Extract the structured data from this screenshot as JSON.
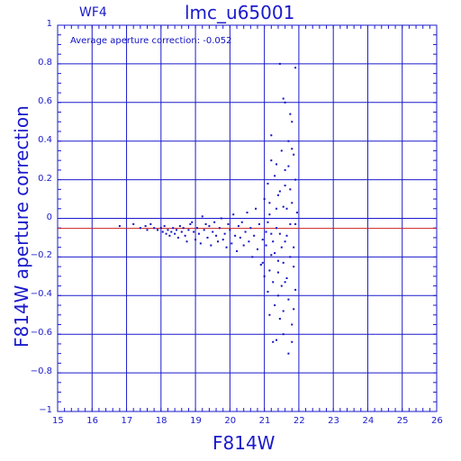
{
  "chart_data": {
    "type": "scatter",
    "corner_label": "WF4",
    "title": "lmc_u65001",
    "xlabel": "F814W",
    "ylabel": "F814W aperture correction",
    "annotation": "Average aperture correction: -0.052",
    "xlim": [
      15,
      26
    ],
    "ylim": [
      -1,
      1
    ],
    "xticks": [
      15,
      16,
      17,
      18,
      19,
      20,
      21,
      22,
      23,
      24,
      25,
      26
    ],
    "xtick_labels": [
      "15",
      "16",
      "17",
      "18",
      "19",
      "20",
      "21",
      "22",
      "23",
      "24",
      "25",
      "26"
    ],
    "yticks": [
      -1,
      -0.8,
      -0.6,
      -0.4,
      -0.2,
      0,
      0.2,
      0.4,
      0.6,
      0.8,
      1
    ],
    "ytick_labels": [
      "−1",
      "−0.8",
      "−0.6",
      "−0.4",
      "−0.2",
      "0",
      "0.2",
      "0.4",
      "0.6",
      "0.8",
      "1"
    ],
    "grid": true,
    "reference_line": -0.052,
    "colors": {
      "axes": "#1a1acc",
      "points": "#1010c0",
      "reference_line": "#cc2222"
    },
    "points": [
      [
        16.8,
        -0.04
      ],
      [
        17.2,
        -0.03
      ],
      [
        17.4,
        -0.05
      ],
      [
        17.55,
        -0.04
      ],
      [
        17.6,
        -0.06
      ],
      [
        17.7,
        -0.03
      ],
      [
        17.8,
        -0.05
      ],
      [
        17.9,
        -0.06
      ],
      [
        18.0,
        -0.05
      ],
      [
        18.05,
        -0.07
      ],
      [
        18.1,
        -0.04
      ],
      [
        18.15,
        -0.08
      ],
      [
        18.2,
        -0.06
      ],
      [
        18.25,
        -0.09
      ],
      [
        18.3,
        -0.07
      ],
      [
        18.35,
        -0.05
      ],
      [
        18.4,
        -0.08
      ],
      [
        18.45,
        -0.06
      ],
      [
        18.5,
        -0.1
      ],
      [
        18.55,
        -0.04
      ],
      [
        18.6,
        -0.07
      ],
      [
        18.65,
        -0.05
      ],
      [
        18.7,
        -0.09
      ],
      [
        18.75,
        -0.12
      ],
      [
        18.8,
        -0.06
      ],
      [
        18.85,
        -0.03
      ],
      [
        18.9,
        -0.02
      ],
      [
        18.95,
        -0.07
      ],
      [
        19.0,
        -0.11
      ],
      [
        19.05,
        -0.05
      ],
      [
        19.1,
        -0.08
      ],
      [
        19.15,
        -0.13
      ],
      [
        19.2,
        0.01
      ],
      [
        19.25,
        -0.06
      ],
      [
        19.3,
        -0.03
      ],
      [
        19.35,
        -0.1
      ],
      [
        19.4,
        -0.04
      ],
      [
        19.45,
        -0.14
      ],
      [
        19.5,
        -0.07
      ],
      [
        19.55,
        -0.02
      ],
      [
        19.6,
        -0.09
      ],
      [
        19.65,
        -0.12
      ],
      [
        19.7,
        -0.05
      ],
      [
        19.75,
        0.0
      ],
      [
        19.8,
        -0.11
      ],
      [
        19.85,
        -0.08
      ],
      [
        19.9,
        -0.15
      ],
      [
        19.95,
        -0.03
      ],
      [
        20.0,
        -0.06
      ],
      [
        20.05,
        -0.13
      ],
      [
        20.1,
        0.02
      ],
      [
        20.15,
        -0.09
      ],
      [
        20.2,
        -0.17
      ],
      [
        20.25,
        -0.04
      ],
      [
        20.3,
        -0.1
      ],
      [
        20.35,
        -0.02
      ],
      [
        20.4,
        -0.14
      ],
      [
        20.45,
        -0.07
      ],
      [
        20.5,
        0.03
      ],
      [
        20.55,
        -0.12
      ],
      [
        20.6,
        -0.05
      ],
      [
        20.65,
        -0.2
      ],
      [
        20.7,
        -0.09
      ],
      [
        20.75,
        0.05
      ],
      [
        20.8,
        -0.16
      ],
      [
        20.85,
        -0.03
      ],
      [
        20.9,
        -0.24
      ],
      [
        20.95,
        -0.11
      ],
      [
        21.0,
        0.1
      ],
      [
        21.0,
        -0.3
      ],
      [
        21.05,
        -0.07
      ],
      [
        21.1,
        0.18
      ],
      [
        21.1,
        -0.38
      ],
      [
        21.15,
        0.02
      ],
      [
        21.2,
        -0.19
      ],
      [
        21.2,
        0.3
      ],
      [
        21.25,
        -0.12
      ],
      [
        21.3,
        -0.45
      ],
      [
        21.3,
        0.22
      ],
      [
        21.35,
        -0.05
      ],
      [
        21.4,
        -0.28
      ],
      [
        21.4,
        0.12
      ],
      [
        21.45,
        -0.52
      ],
      [
        21.5,
        0.35
      ],
      [
        21.5,
        -0.15
      ],
      [
        21.55,
        0.06
      ],
      [
        21.55,
        -0.6
      ],
      [
        21.6,
        -0.33
      ],
      [
        21.6,
        0.25
      ],
      [
        21.65,
        -0.09
      ],
      [
        21.7,
        0.4
      ],
      [
        21.7,
        -0.42
      ],
      [
        21.75,
        -0.2
      ],
      [
        21.75,
        0.15
      ],
      [
        21.8,
        -0.55
      ],
      [
        21.8,
        0.08
      ],
      [
        21.85,
        -0.25
      ],
      [
        21.85,
        0.33
      ],
      [
        21.9,
        -0.37
      ],
      [
        21.9,
        0.2
      ],
      [
        21.45,
        0.8
      ],
      [
        21.55,
        0.62
      ],
      [
        21.6,
        0.6
      ],
      [
        21.75,
        0.54
      ],
      [
        21.8,
        0.5
      ],
      [
        21.9,
        0.78
      ],
      [
        21.7,
        -0.7
      ],
      [
        21.8,
        -0.64
      ],
      [
        21.25,
        -0.64
      ],
      [
        21.35,
        -0.63
      ],
      [
        21.55,
        -0.48
      ],
      [
        21.65,
        -0.31
      ],
      [
        21.35,
        0.28
      ],
      [
        21.2,
        0.43
      ],
      [
        21.15,
        -0.27
      ],
      [
        21.45,
        -0.08
      ],
      [
        21.3,
        -0.18
      ],
      [
        21.5,
        -0.35
      ],
      [
        21.85,
        -0.47
      ],
      [
        21.15,
        0.08
      ],
      [
        21.95,
        0.03
      ],
      [
        21.9,
        -0.03
      ],
      [
        21.8,
        0.36
      ],
      [
        21.7,
        0.27
      ],
      [
        21.6,
        0.17
      ],
      [
        21.4,
        -0.22
      ],
      [
        21.25,
        -0.33
      ],
      [
        21.05,
        -0.14
      ],
      [
        20.95,
        -0.23
      ],
      [
        21.15,
        -0.5
      ],
      [
        21.4,
        -0.4
      ],
      [
        21.6,
        -0.12
      ],
      [
        21.75,
        -0.03
      ],
      [
        21.85,
        -0.15
      ],
      [
        21.35,
        0.05
      ],
      [
        21.45,
        0.14
      ],
      [
        21.55,
        -0.23
      ],
      [
        21.65,
        0.05
      ],
      [
        21.2,
        -0.08
      ],
      [
        21.1,
        -0.02
      ]
    ]
  }
}
